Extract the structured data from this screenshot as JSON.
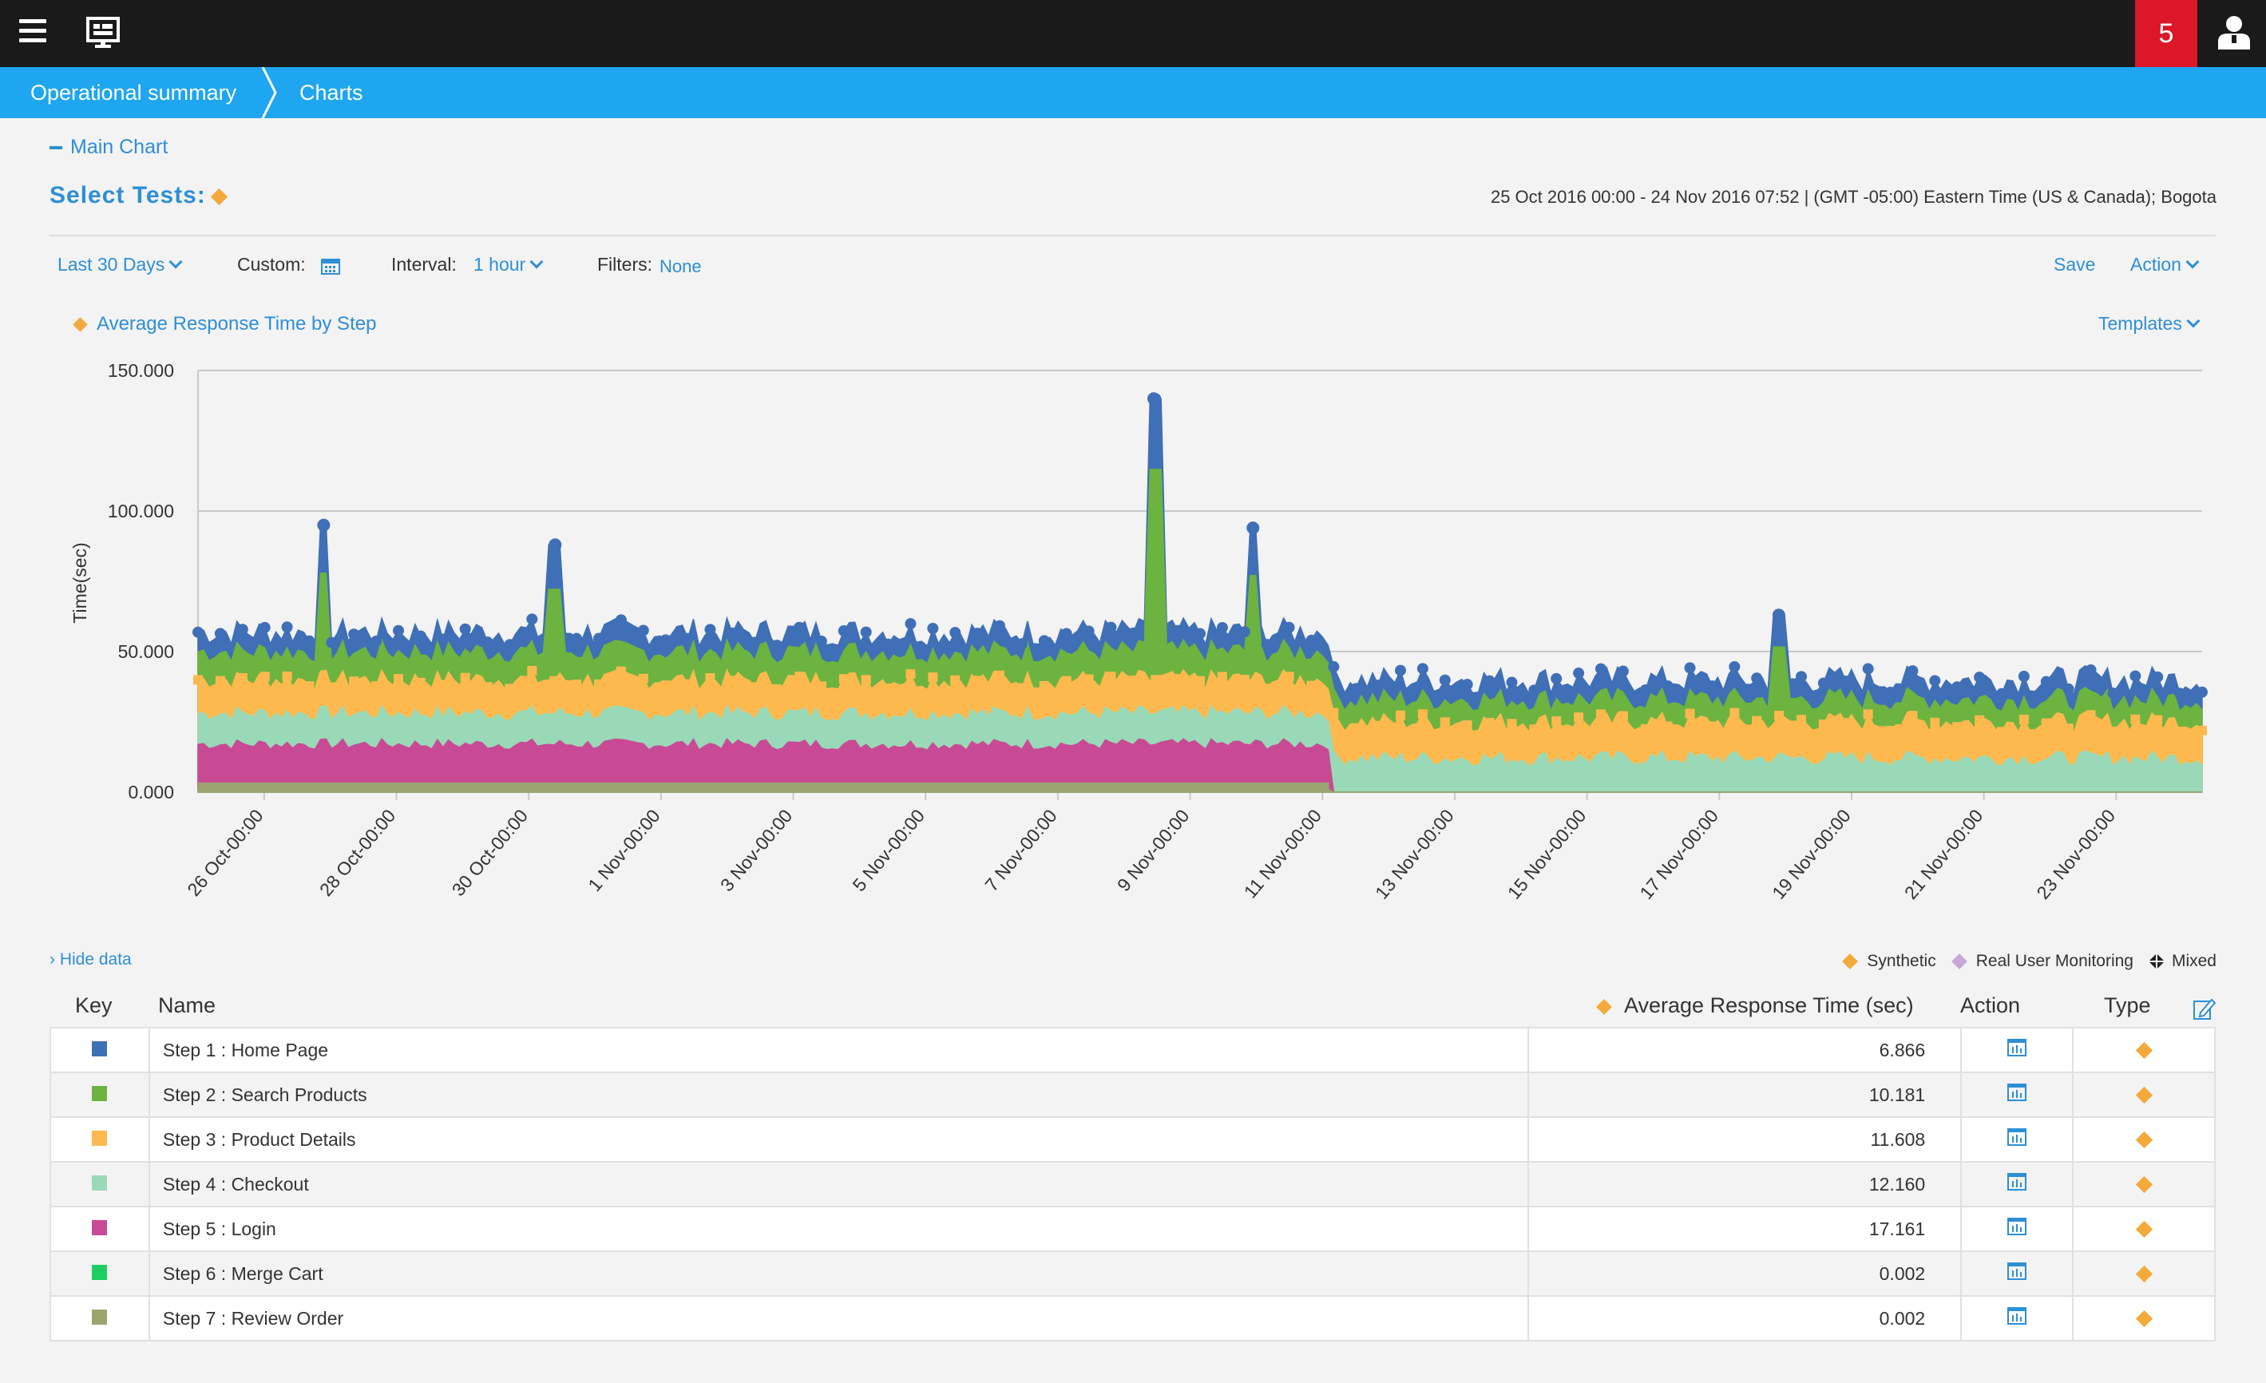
{
  "header": {
    "menu_icon": "hamburger-menu-icon",
    "monitor_icon": "monitor-dashboard-icon",
    "notification_count": "5",
    "user_icon": "user-account-icon"
  },
  "breadcrumb": {
    "items": [
      "Operational summary",
      "Charts"
    ]
  },
  "main_chart_toggle": "Main Chart",
  "select_tests": "Select Tests:",
  "date_range": "25 Oct 2016 00:00 - 24 Nov 2016 07:52  | (GMT -05:00) Eastern Time (US & Canada); Bogota",
  "toolbar": {
    "range": "Last 30 Days",
    "custom_label": "Custom:",
    "interval_label": "Interval:",
    "interval_value": "1 hour",
    "filters_label": "Filters:",
    "filters_value": "None",
    "save": "Save",
    "action": "Action",
    "templates": "Templates"
  },
  "chart_legend_title": "Average Response Time by Step",
  "colors": {
    "accent": "#2d8fd6",
    "breadcrumb_bg": "#1fa6f0",
    "notification_bg": "#dc172a",
    "synthetic": "#f4a93b",
    "rum": "#c9a6d8"
  },
  "chart_data": {
    "type": "area",
    "title": "Average Response Time by Step",
    "xlabel": "",
    "ylabel": "Time(sec)",
    "ylim": [
      0,
      150
    ],
    "y_ticks": [
      "0.000",
      "50.000",
      "100.000",
      "150.000"
    ],
    "x_range_days": [
      "25 Oct",
      "25 Nov"
    ],
    "x_tick_labels": [
      "26 Oct-00:00",
      "28 Oct-00:00",
      "30 Oct-00:00",
      "1 Nov-00:00",
      "3 Nov-00:00",
      "5 Nov-00:00",
      "7 Nov-00:00",
      "9 Nov-00:00",
      "11 Nov-00:00",
      "13 Nov-00:00",
      "15 Nov-00:00",
      "17 Nov-00:00",
      "19 Nov-00:00",
      "21 Nov-00:00",
      "23 Nov-00:00"
    ],
    "grid": true,
    "stacked": true,
    "series": [
      {
        "name": "Step 1 : Home Page",
        "color": "#3f6fb6",
        "approx_stack_top_before": 57,
        "approx_stack_top_after": 40
      },
      {
        "name": "Step 2 : Search Products",
        "color": "#6cb33f",
        "approx_stack_top_before": 50,
        "approx_stack_top_after": 33
      },
      {
        "name": "Step 3 : Product Details",
        "color": "#fdb94e",
        "approx_stack_top_before": 40,
        "approx_stack_top_after": 25
      },
      {
        "name": "Step 4 : Checkout",
        "color": "#99d9b7",
        "approx_stack_top_before": 28,
        "approx_stack_top_after": 12
      },
      {
        "name": "Step 5 : Login",
        "color": "#c84a95",
        "approx_stack_top_before": 17,
        "approx_stack_top_after": 0
      },
      {
        "name": "Step 6 : Merge Cart",
        "color": "#1dce64",
        "approx_stack_top_before": 1,
        "approx_stack_top_after": 0
      },
      {
        "name": "Step 7 : Review Order",
        "color": "#9ba46f",
        "approx_stack_top_before": 1,
        "approx_stack_top_after": 0
      }
    ],
    "peaks": [
      {
        "day": 26.9,
        "value": 95
      },
      {
        "day": 30.4,
        "value": 88
      },
      {
        "day": 39.45,
        "value": 140
      },
      {
        "day": 40.95,
        "value": 94
      },
      {
        "day": 48.9,
        "value": 63
      }
    ],
    "change_day": 42.1
  },
  "data_section": {
    "hide_data": "› Hide data",
    "legend": [
      "Synthetic",
      "Real User Monitoring",
      "Mixed"
    ]
  },
  "table": {
    "headers": {
      "key": "Key",
      "name": "Name",
      "avg": "Average Response Time (sec)",
      "action": "Action",
      "type": "Type"
    },
    "rows": [
      {
        "name": "Step 1 : Home Page",
        "color": "#3f6fb6",
        "value": "6.866"
      },
      {
        "name": "Step 2 : Search Products",
        "color": "#6cb33f",
        "value": "10.181"
      },
      {
        "name": "Step 3 : Product Details",
        "color": "#fdb94e",
        "value": "11.608"
      },
      {
        "name": "Step 4 : Checkout",
        "color": "#99d9b7",
        "value": "12.160"
      },
      {
        "name": "Step 5 : Login",
        "color": "#c84a95",
        "value": "17.161"
      },
      {
        "name": "Step 6 : Merge Cart",
        "color": "#1dce64",
        "value": "0.002"
      },
      {
        "name": "Step 7 : Review Order",
        "color": "#9ba46f",
        "value": "0.002"
      }
    ]
  }
}
